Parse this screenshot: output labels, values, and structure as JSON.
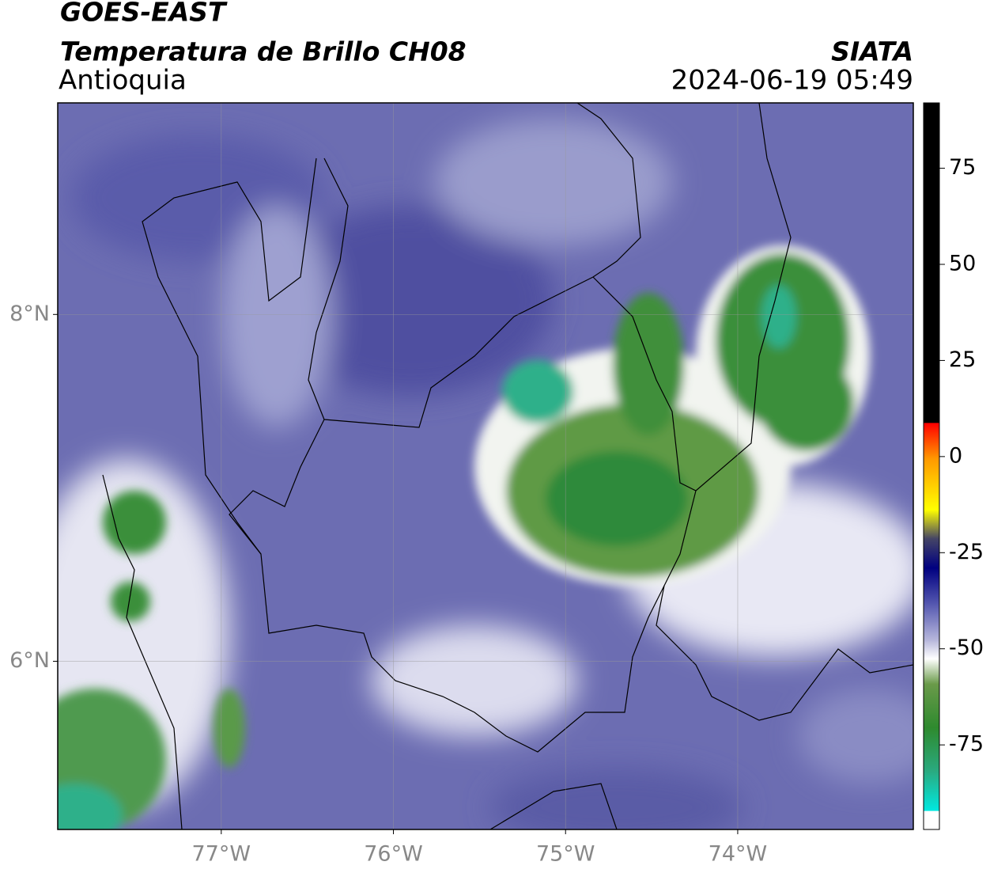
{
  "header": {
    "title": "GOES-EAST",
    "subtitle": "Temperatura de Brillo CH08",
    "region": "Antioquia",
    "source": "SIATA",
    "datetime": "2024-06-19 05:49"
  },
  "map": {
    "xlim": [
      -77.95,
      -72.98
    ],
    "ylim": [
      5.03,
      9.22
    ],
    "xticks": [
      {
        "value": -77,
        "label": "77°W"
      },
      {
        "value": -76,
        "label": "76°W"
      },
      {
        "value": -75,
        "label": "75°W"
      },
      {
        "value": -74,
        "label": "74°W"
      }
    ],
    "yticks": [
      {
        "value": 8,
        "label": "8°N"
      },
      {
        "value": 6,
        "label": "6°N"
      }
    ],
    "grid": true
  },
  "colorbar": {
    "lim": [
      -97,
      92
    ],
    "ticks": [
      75,
      50,
      25,
      0,
      -25,
      -50,
      -75
    ]
  }
}
